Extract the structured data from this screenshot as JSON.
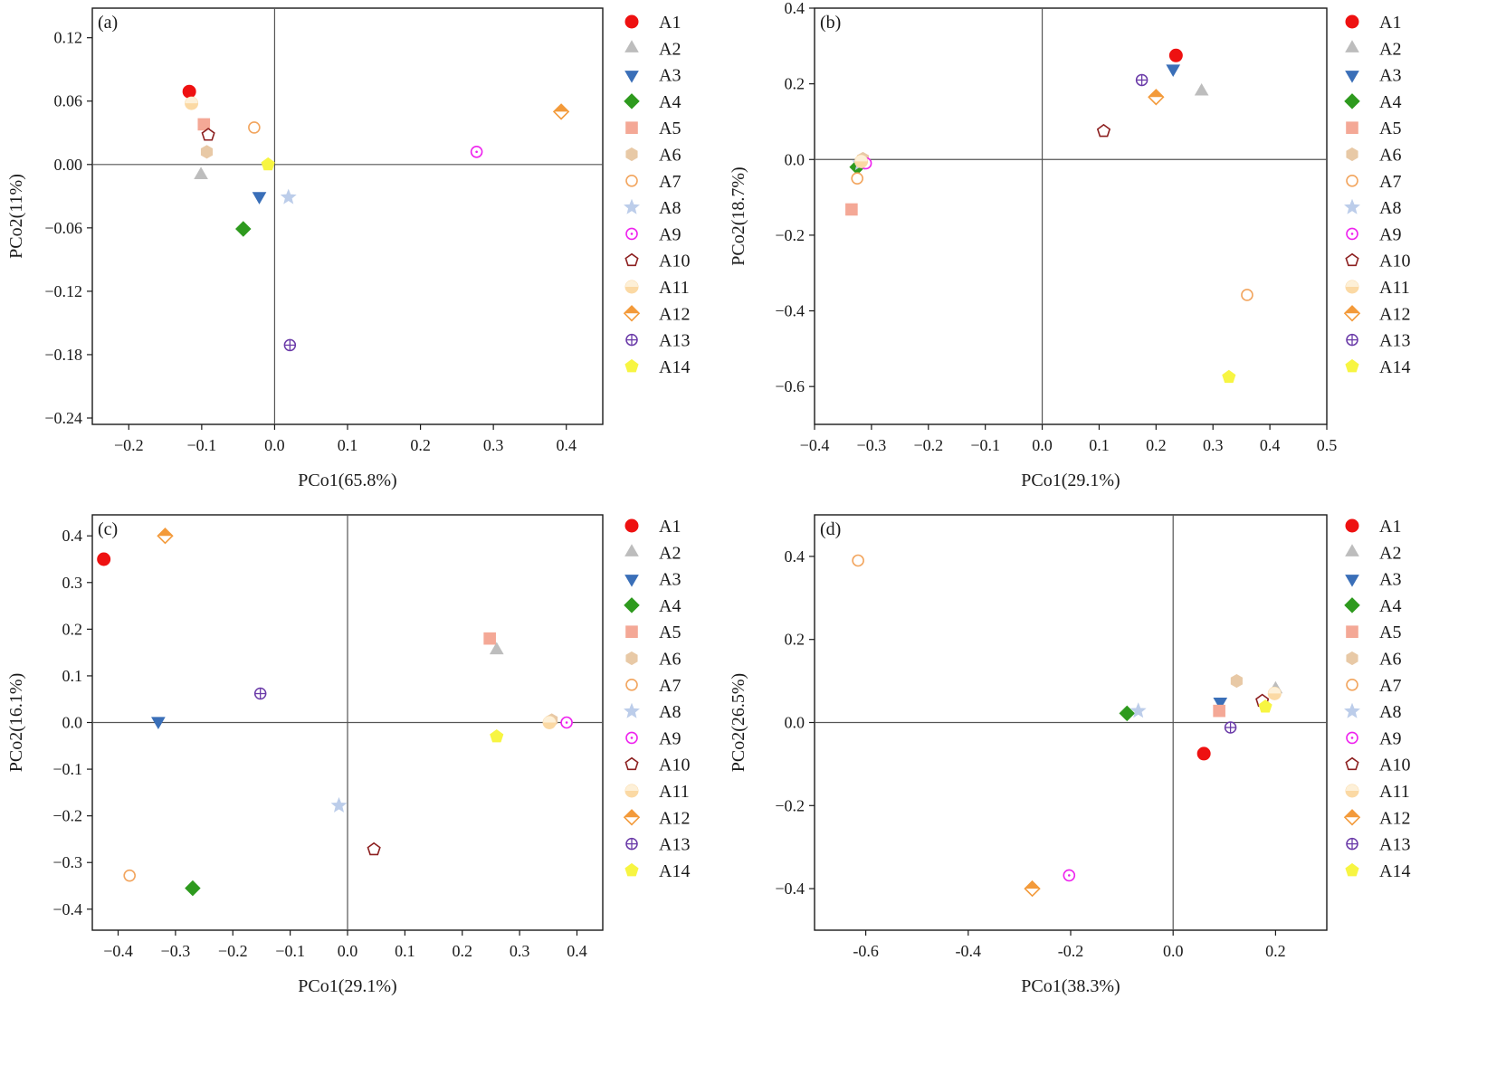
{
  "figure": {
    "legend_labels": [
      "A1",
      "A2",
      "A3",
      "A4",
      "A5",
      "A6",
      "A7",
      "A8",
      "A9",
      "A10",
      "A11",
      "A12",
      "A13",
      "A14"
    ],
    "styles": [
      {
        "shape": "circle",
        "fill": "#ee1111",
        "stroke": "#ee1111"
      },
      {
        "shape": "triangle",
        "fill": "#bdbdbd",
        "stroke": "#bdbdbd"
      },
      {
        "shape": "triangle-down",
        "fill": "#3a6fb8",
        "stroke": "#3a6fb8"
      },
      {
        "shape": "diamond",
        "fill": "#2e9a1e",
        "stroke": "#2e9a1e"
      },
      {
        "shape": "square",
        "fill": "#f4a896",
        "stroke": "#f4a896"
      },
      {
        "shape": "hexagon",
        "fill": "#e8c9a6",
        "stroke": "#e8c9a6"
      },
      {
        "shape": "circle-open",
        "fill": "none",
        "stroke": "#f2a55e"
      },
      {
        "shape": "star",
        "fill": "#bccdea",
        "stroke": "#bccdea"
      },
      {
        "shape": "circle-dot",
        "fill": "none",
        "stroke": "#ee22ee"
      },
      {
        "shape": "pentagon-open",
        "fill": "none",
        "stroke": "#8c1f1f"
      },
      {
        "shape": "circle-half",
        "fill": "#fbd9a4",
        "stroke": "#fbd9a4"
      },
      {
        "shape": "diamond-half",
        "fill": "#f39a3a",
        "stroke": "#f39a3a"
      },
      {
        "shape": "circle-plus",
        "fill": "none",
        "stroke": "#6a3aa8"
      },
      {
        "shape": "pentagon",
        "fill": "#f7f542",
        "stroke": "#f7f542"
      }
    ]
  },
  "chart_data": [
    {
      "type": "scatter",
      "panel_label": "(a)",
      "xlabel": "PCo1(65.8%)",
      "ylabel": "PCo2(11%)",
      "xlim": [
        -0.25,
        0.45
      ],
      "ylim": [
        -0.246,
        0.148
      ],
      "xticks": [
        -0.2,
        -0.1,
        0.0,
        0.1,
        0.2,
        0.3,
        0.4
      ],
      "xtick_labels": [
        "−0.2",
        "−0.1",
        "0.0",
        "0.1",
        "0.2",
        "0.3",
        "0.4"
      ],
      "yticks": [
        0.12,
        0.06,
        0.0,
        -0.06,
        -0.12,
        -0.18,
        -0.24
      ],
      "ytick_labels": [
        "0.12",
        "0.06",
        "0.00",
        "−0.06",
        "−0.12",
        "−0.18",
        "−0.24"
      ],
      "points": [
        {
          "label": "A1",
          "x": -0.117,
          "y": 0.069
        },
        {
          "label": "A2",
          "x": -0.101,
          "y": -0.01
        },
        {
          "label": "A3",
          "x": -0.021,
          "y": -0.03
        },
        {
          "label": "A4",
          "x": -0.043,
          "y": -0.061
        },
        {
          "label": "A5",
          "x": -0.097,
          "y": 0.038
        },
        {
          "label": "A6",
          "x": -0.093,
          "y": 0.012
        },
        {
          "label": "A7",
          "x": -0.028,
          "y": 0.035
        },
        {
          "label": "A8",
          "x": 0.019,
          "y": -0.031
        },
        {
          "label": "A9",
          "x": 0.277,
          "y": 0.012
        },
        {
          "label": "A10",
          "x": -0.091,
          "y": 0.028
        },
        {
          "label": "A11",
          "x": -0.114,
          "y": 0.058
        },
        {
          "label": "A12",
          "x": 0.393,
          "y": 0.05
        },
        {
          "label": "A13",
          "x": 0.021,
          "y": -0.171
        },
        {
          "label": "A14",
          "x": -0.009,
          "y": 0.0
        }
      ]
    },
    {
      "type": "scatter",
      "panel_label": "(b)",
      "xlabel": "PCo1(29.1%)",
      "ylabel": "PCo2(18.7%)",
      "xlim": [
        -0.4,
        0.5
      ],
      "ylim": [
        -0.7,
        0.4
      ],
      "xticks": [
        -0.4,
        -0.3,
        -0.2,
        -0.1,
        0.0,
        0.1,
        0.2,
        0.3,
        0.4,
        0.5
      ],
      "xtick_labels": [
        "−0.4",
        "−0.3",
        "−0.2",
        "−0.1",
        "0.0",
        "0.1",
        "0.2",
        "0.3",
        "0.4",
        "0.5"
      ],
      "yticks": [
        0.4,
        0.2,
        0.0,
        -0.2,
        -0.4,
        -0.6
      ],
      "ytick_labels": [
        "0.4",
        "0.2",
        "0.0",
        "−0.2",
        "−0.4",
        "−0.6"
      ],
      "points": [
        {
          "label": "A1",
          "x": 0.235,
          "y": 0.275
        },
        {
          "label": "A2",
          "x": 0.28,
          "y": 0.18
        },
        {
          "label": "A3",
          "x": 0.23,
          "y": 0.24
        },
        {
          "label": "A4",
          "x": -0.325,
          "y": -0.02
        },
        {
          "label": "A5",
          "x": -0.335,
          "y": -0.132
        },
        {
          "label": "A6",
          "x": -0.315,
          "y": 0.002
        },
        {
          "label": "A7",
          "x": -0.325,
          "y": -0.05
        },
        {
          "label": "A8",
          "x": -0.32,
          "y": -0.01
        },
        {
          "label": "A9",
          "x": -0.31,
          "y": -0.01
        },
        {
          "label": "A10",
          "x": 0.108,
          "y": 0.075
        },
        {
          "label": "A11",
          "x": -0.318,
          "y": -0.005
        },
        {
          "label": "A12",
          "x": 0.2,
          "y": 0.165
        },
        {
          "label": "A13",
          "x": 0.175,
          "y": 0.21
        },
        {
          "label": "A14",
          "x": 0.328,
          "y": -0.575
        },
        {
          "label": "A7",
          "x": 0.36,
          "y": -0.358
        }
      ]
    },
    {
      "type": "scatter",
      "panel_label": "(c)",
      "xlabel": "PCo1(29.1%)",
      "ylabel": "PCo2(16.1%)",
      "xlim": [
        -0.445,
        0.445
      ],
      "ylim": [
        -0.445,
        0.445
      ],
      "xticks": [
        -0.4,
        -0.3,
        -0.2,
        -0.1,
        0.0,
        0.1,
        0.2,
        0.3,
        0.4
      ],
      "xtick_labels": [
        "−0.4",
        "−0.3",
        "−0.2",
        "−0.1",
        "0.0",
        "0.1",
        "0.2",
        "0.3",
        "0.4"
      ],
      "yticks": [
        0.4,
        0.3,
        0.2,
        0.1,
        0.0,
        -0.1,
        -0.2,
        -0.3,
        -0.4
      ],
      "ytick_labels": [
        "0.4",
        "0.3",
        "0.2",
        "0.1",
        "0.0",
        "−0.1",
        "−0.2",
        "−0.3",
        "−0.4"
      ],
      "points": [
        {
          "label": "A1",
          "x": -0.425,
          "y": 0.35
        },
        {
          "label": "A2",
          "x": 0.26,
          "y": 0.155
        },
        {
          "label": "A3",
          "x": -0.33,
          "y": 0.003
        },
        {
          "label": "A4",
          "x": -0.27,
          "y": -0.355
        },
        {
          "label": "A5",
          "x": 0.248,
          "y": 0.18
        },
        {
          "label": "A6",
          "x": 0.356,
          "y": 0.005
        },
        {
          "label": "A7",
          "x": -0.38,
          "y": -0.328
        },
        {
          "label": "A8",
          "x": -0.015,
          "y": -0.178
        },
        {
          "label": "A9",
          "x": 0.382,
          "y": 0.0
        },
        {
          "label": "A10",
          "x": 0.046,
          "y": -0.272
        },
        {
          "label": "A11",
          "x": 0.352,
          "y": 0.0
        },
        {
          "label": "A12",
          "x": -0.318,
          "y": 0.4
        },
        {
          "label": "A13",
          "x": -0.152,
          "y": 0.062
        },
        {
          "label": "A14",
          "x": 0.26,
          "y": -0.03
        }
      ]
    },
    {
      "type": "scatter",
      "panel_label": "(d)",
      "xlabel": "PCo1(38.3%)",
      "ylabel": "PCo2(26.5%)",
      "xlim": [
        -0.7,
        0.3
      ],
      "ylim": [
        -0.5,
        0.5
      ],
      "xticks": [
        -0.6,
        -0.4,
        -0.2,
        0.0,
        0.2
      ],
      "xtick_labels": [
        "-0.6",
        "-0.4",
        "-0.2",
        "0.0",
        "0.2"
      ],
      "yticks": [
        0.4,
        0.2,
        0.0,
        -0.2,
        -0.4
      ],
      "ytick_labels": [
        "0.4",
        "0.2",
        "0.0",
        "−0.2",
        "−0.4"
      ],
      "points": [
        {
          "label": "A1",
          "x": 0.06,
          "y": -0.075
        },
        {
          "label": "A2",
          "x": 0.2,
          "y": 0.08
        },
        {
          "label": "A3",
          "x": 0.092,
          "y": 0.05
        },
        {
          "label": "A4",
          "x": -0.09,
          "y": 0.022
        },
        {
          "label": "A5",
          "x": 0.09,
          "y": 0.028
        },
        {
          "label": "A6",
          "x": 0.124,
          "y": 0.1
        },
        {
          "label": "A7",
          "x": -0.615,
          "y": 0.39
        },
        {
          "label": "A8",
          "x": -0.068,
          "y": 0.028
        },
        {
          "label": "A9",
          "x": -0.203,
          "y": -0.368
        },
        {
          "label": "A10",
          "x": 0.174,
          "y": 0.052
        },
        {
          "label": "A11",
          "x": 0.198,
          "y": 0.07
        },
        {
          "label": "A12",
          "x": -0.275,
          "y": -0.4
        },
        {
          "label": "A13",
          "x": 0.112,
          "y": -0.012
        },
        {
          "label": "A14",
          "x": 0.18,
          "y": 0.038
        }
      ]
    }
  ]
}
